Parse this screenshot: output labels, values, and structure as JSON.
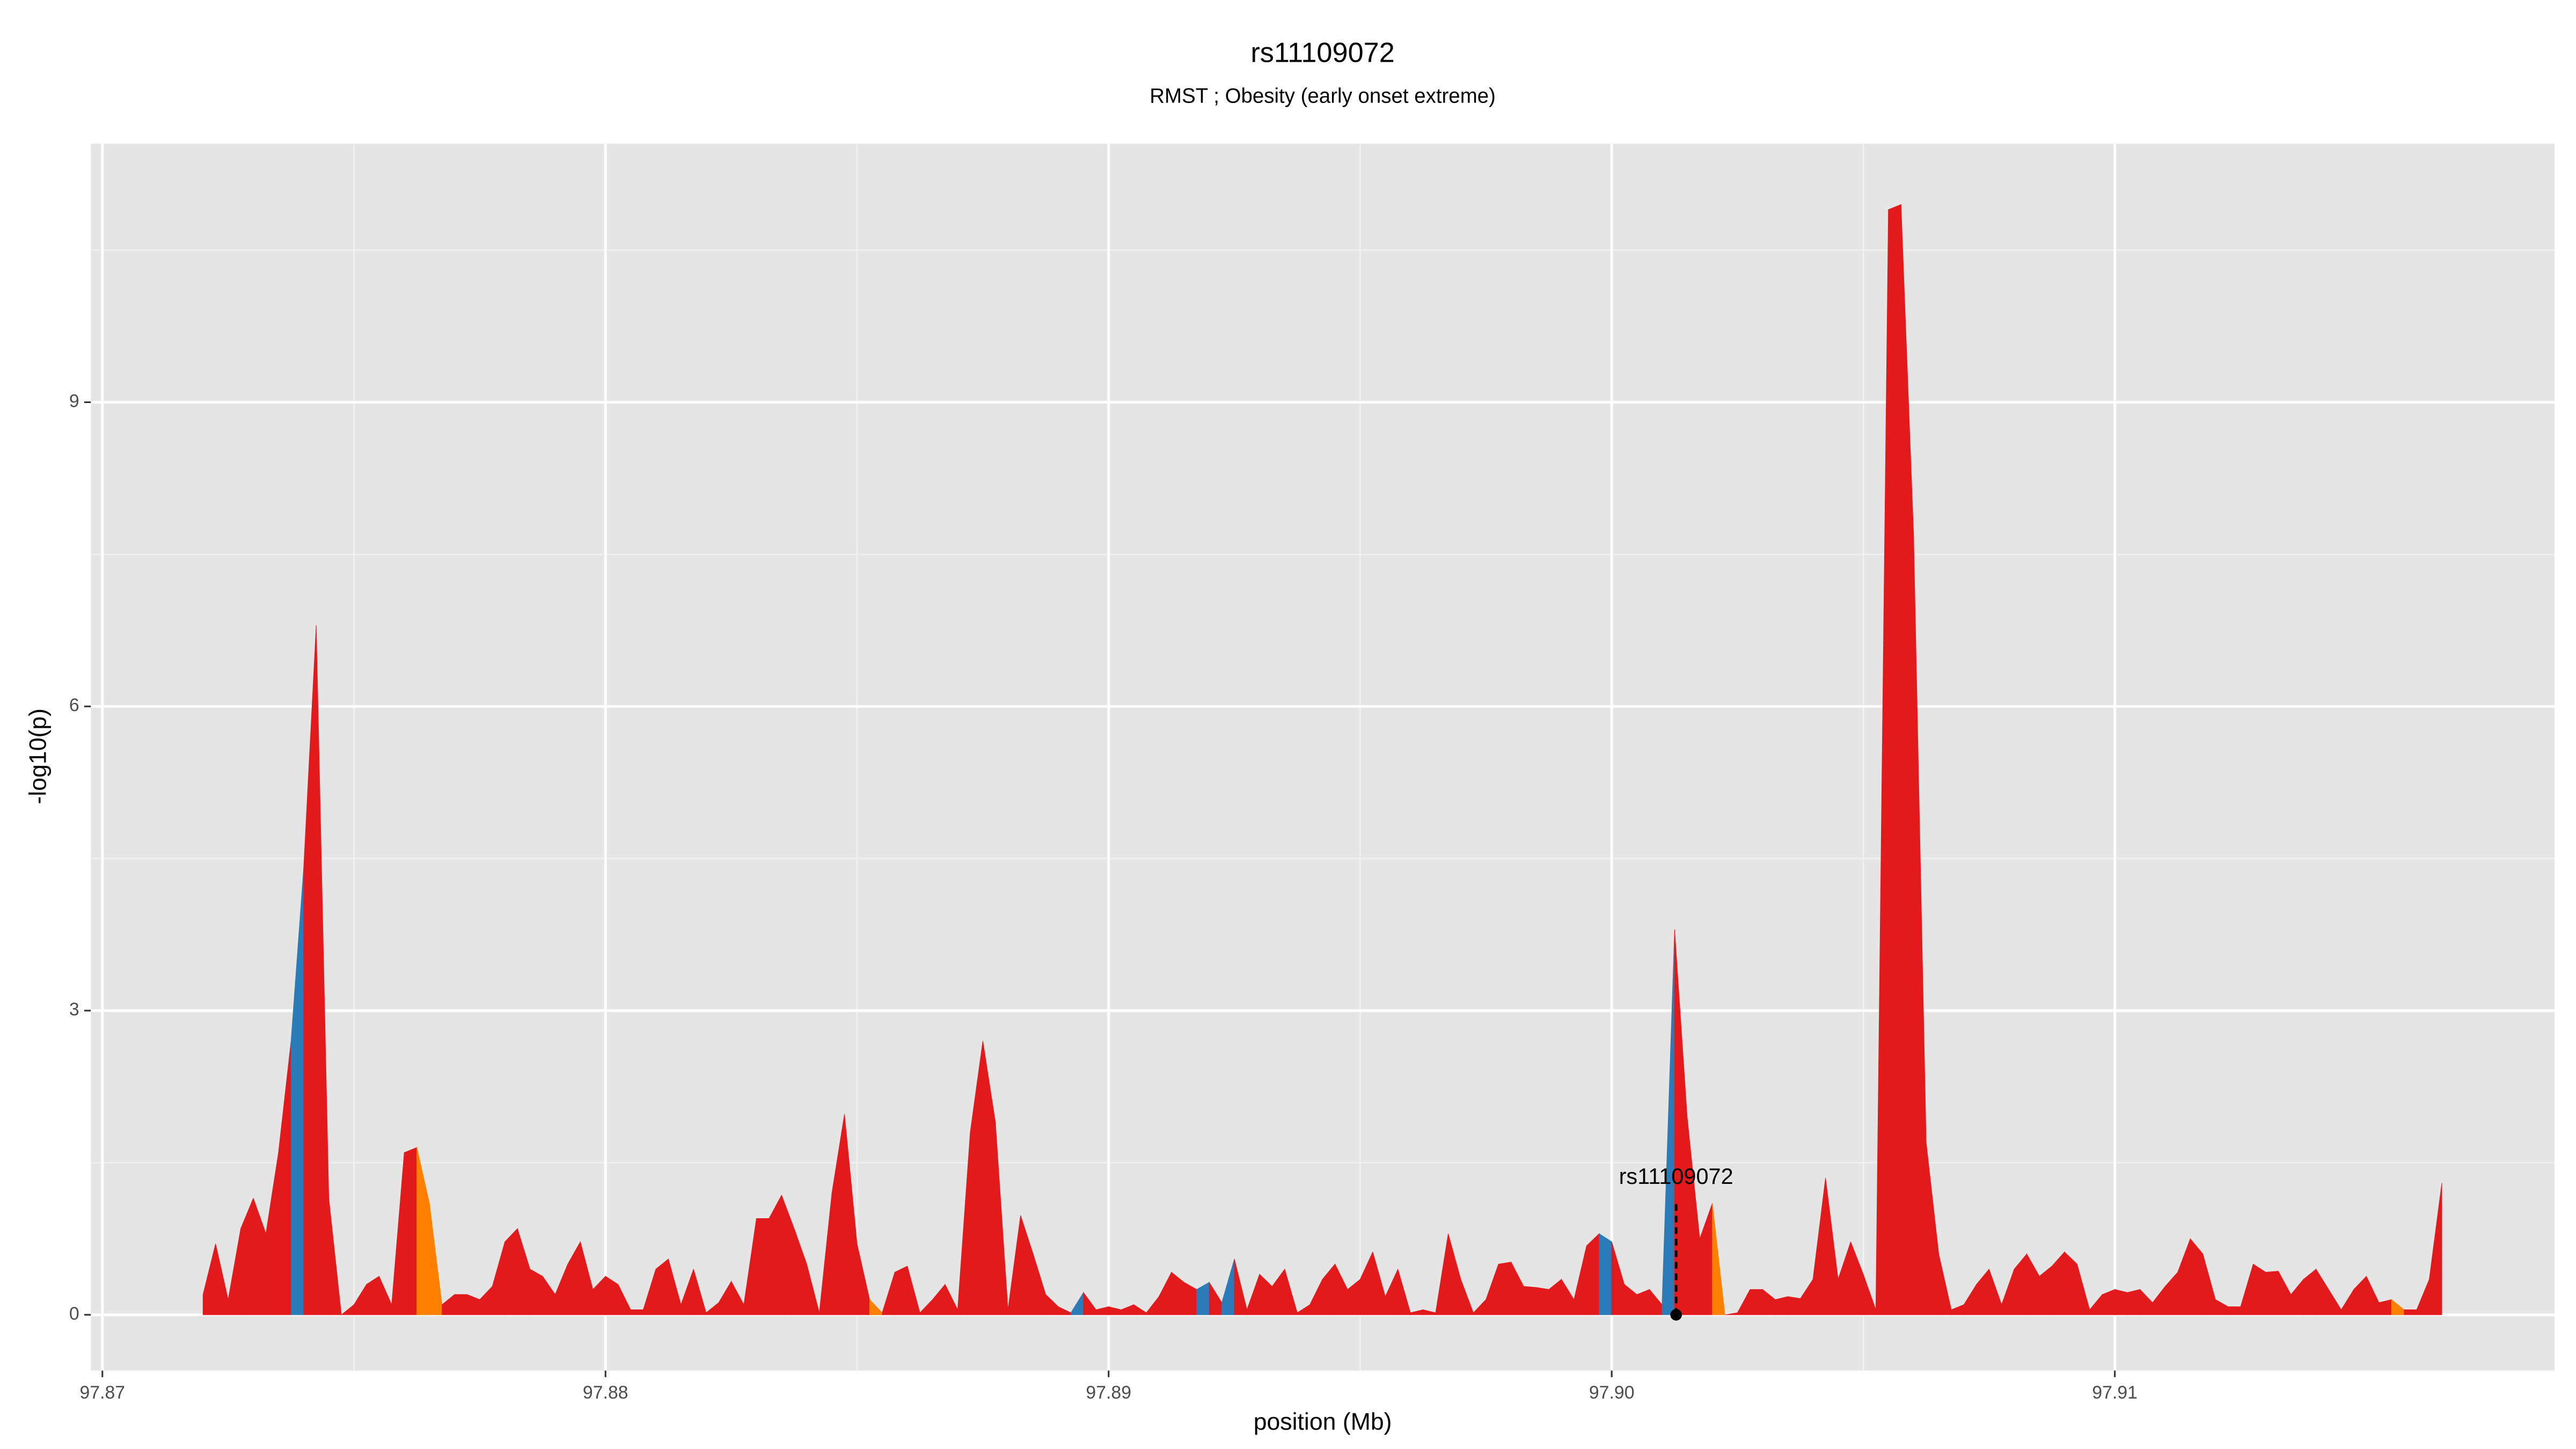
{
  "chart_data": {
    "type": "area",
    "title": "rs11109072",
    "subtitle": "RMST ; Obesity (early onset extreme)",
    "x_label": "position (Mb)",
    "y_label": "-log10(p)",
    "xlim": [
      97.86977,
      97.91874
    ],
    "xticks": [
      97.87,
      97.88,
      97.89,
      {
        "value": 97.9,
        "label": "97.90"
      },
      97.91
    ],
    "ylim": [
      -0.55,
      11.55
    ],
    "yticks": [
      0,
      3,
      6,
      9
    ],
    "grid": true,
    "x": [
      97.872,
      97.87225,
      97.8725,
      97.87275,
      97.873,
      97.87325,
      97.8735,
      97.87375,
      97.874,
      97.87425,
      97.8745,
      97.87475,
      97.875,
      97.87525,
      97.8755,
      97.87575,
      97.876,
      97.87625,
      97.8765,
      97.87675,
      97.877,
      97.87725,
      97.8775,
      97.87775,
      97.878,
      97.87825,
      97.8785,
      97.87875,
      97.879,
      97.87925,
      97.8795,
      97.87975,
      97.88,
      97.88025,
      97.8805,
      97.88075,
      97.881,
      97.88125,
      97.8815,
      97.88175,
      97.882,
      97.88225,
      97.8825,
      97.88275,
      97.883,
      97.88325,
      97.8835,
      97.88375,
      97.884,
      97.88425,
      97.8845,
      97.88475,
      97.885,
      97.88525,
      97.8855,
      97.88575,
      97.886,
      97.88625,
      97.8865,
      97.88675,
      97.887,
      97.88725,
      97.8875,
      97.88775,
      97.888,
      97.88825,
      97.8885,
      97.88875,
      97.889,
      97.88925,
      97.8895,
      97.88975,
      97.89,
      97.89025,
      97.8905,
      97.89075,
      97.891,
      97.89125,
      97.8915,
      97.89175,
      97.892,
      97.89225,
      97.8925,
      97.89275,
      97.893,
      97.89325,
      97.8935,
      97.89375,
      97.894,
      97.89425,
      97.8945,
      97.89475,
      97.895,
      97.89525,
      97.8955,
      97.89575,
      97.896,
      97.89625,
      97.8965,
      97.89675,
      97.897,
      97.89725,
      97.8975,
      97.89775,
      97.898,
      97.89825,
      97.8985,
      97.89875,
      97.899,
      97.89925,
      97.8995,
      97.89975,
      97.9,
      97.90025,
      97.9005,
      97.90075,
      97.901,
      97.90125,
      97.9015,
      97.90175,
      97.902,
      97.90225,
      97.9025,
      97.90275,
      97.903,
      97.90325,
      97.9035,
      97.90375,
      97.904,
      97.90425,
      97.9045,
      97.90475,
      97.905,
      97.90525,
      97.9055,
      97.90575,
      97.906,
      97.90625,
      97.9065,
      97.90675,
      97.907,
      97.90725,
      97.9075,
      97.90775,
      97.908,
      97.90825,
      97.9085,
      97.90875,
      97.909,
      97.90925,
      97.9095,
      97.90975,
      97.91,
      97.91025,
      97.9105,
      97.91075,
      97.911,
      97.91125,
      97.9115,
      97.91175,
      97.912,
      97.91225,
      97.9125,
      97.91275,
      97.913,
      97.91325,
      97.9135,
      97.91375,
      97.914,
      97.91425,
      97.9145,
      97.91475,
      97.915,
      97.91525,
      97.9155,
      97.91575,
      97.916,
      97.91625,
      97.9165
    ],
    "values": [
      0.2,
      0.7,
      0.15,
      0.85,
      1.15,
      0.8,
      1.6,
      2.7,
      4.4,
      6.8,
      1.15,
      0,
      0.1,
      0.3,
      0.38,
      0.1,
      1.6,
      1.65,
      1.1,
      0.1,
      0.2,
      0.2,
      0.15,
      0.28,
      0.72,
      0.85,
      0.45,
      0.38,
      0.2,
      0.5,
      0.72,
      0.25,
      0.38,
      0.3,
      0.05,
      0.05,
      0.45,
      0.55,
      0.1,
      0.45,
      0.02,
      0.12,
      0.33,
      0.1,
      0.95,
      0.95,
      1.18,
      0.85,
      0.5,
      0.02,
      1.2,
      1.98,
      0.7,
      0.15,
      0.02,
      0.42,
      0.48,
      0.02,
      0.15,
      0.3,
      0.05,
      1.8,
      2.7,
      1.9,
      0.05,
      0.98,
      0.6,
      0.2,
      0.08,
      0.02,
      0.22,
      0.05,
      0.08,
      0.05,
      0.1,
      0.02,
      0.18,
      0.42,
      0.32,
      0.25,
      0.32,
      0.12,
      0.55,
      0.05,
      0.4,
      0.28,
      0.45,
      0.02,
      0.1,
      0.35,
      0.5,
      0.25,
      0.35,
      0.62,
      0.18,
      0.45,
      0.02,
      0.05,
      0.02,
      0.8,
      0.35,
      0.02,
      0.15,
      0.5,
      0.52,
      0.28,
      0.27,
      0.25,
      0.35,
      0.15,
      0.68,
      0.8,
      0.72,
      0.3,
      0.2,
      0.25,
      0.1,
      3.8,
      1.95,
      0.75,
      1.1,
      0,
      0.02,
      0.25,
      0.25,
      0.15,
      0.18,
      0.16,
      0.35,
      1.35,
      0.35,
      0.72,
      0.4,
      0.05,
      10.9,
      10.95,
      7.7,
      1.7,
      0.6,
      0.05,
      0.1,
      0.3,
      0.45,
      0.1,
      0.45,
      0.6,
      0.38,
      0.48,
      0.62,
      0.5,
      0.05,
      0.2,
      0.25,
      0.22,
      0.25,
      0.12,
      0.28,
      0.42,
      0.75,
      0.6,
      0.15,
      0.08,
      0.08,
      0.5,
      0.42,
      0.43,
      0.2,
      0.35,
      0.45,
      0.25,
      0.05,
      0.25,
      0.38,
      0.12,
      0.15,
      0.05,
      0.05,
      0.35,
      1.3
    ],
    "colors": [
      "#e31a1c",
      "#e31a1c",
      "#e31a1c",
      "#e31a1c",
      "#e31a1c",
      "#e31a1c",
      "#e31a1c",
      "#2b7bb9",
      "#e31a1c",
      "#e31a1c",
      "#e31a1c",
      "#e31a1c",
      "#e31a1c",
      "#e31a1c",
      "#e31a1c",
      "#e31a1c",
      "#e31a1c",
      "#ff7f00",
      "#ff7f00",
      "#e31a1c",
      "#e31a1c",
      "#e31a1c",
      "#e31a1c",
      "#e31a1c",
      "#e31a1c",
      "#e31a1c",
      "#e31a1c",
      "#e31a1c",
      "#e31a1c",
      "#e31a1c",
      "#e31a1c",
      "#e31a1c",
      "#e31a1c",
      "#e31a1c",
      "#e31a1c",
      "#e31a1c",
      "#e31a1c",
      "#e31a1c",
      "#e31a1c",
      "#e31a1c",
      "#e31a1c",
      "#e31a1c",
      "#e31a1c",
      "#e31a1c",
      "#e31a1c",
      "#e31a1c",
      "#e31a1c",
      "#e31a1c",
      "#e31a1c",
      "#e31a1c",
      "#e31a1c",
      "#e31a1c",
      "#e31a1c",
      "#ff7f00",
      "#e31a1c",
      "#e31a1c",
      "#e31a1c",
      "#e31a1c",
      "#e31a1c",
      "#e31a1c",
      "#e31a1c",
      "#e31a1c",
      "#e31a1c",
      "#e31a1c",
      "#e31a1c",
      "#e31a1c",
      "#e31a1c",
      "#e31a1c",
      "#e31a1c",
      "#2b7bb9",
      "#e31a1c",
      "#e31a1c",
      "#e31a1c",
      "#e31a1c",
      "#e31a1c",
      "#e31a1c",
      "#e31a1c",
      "#e31a1c",
      "#e31a1c",
      "#2b7bb9",
      "#e31a1c",
      "#2b7bb9",
      "#e31a1c",
      "#e31a1c",
      "#e31a1c",
      "#e31a1c",
      "#e31a1c",
      "#e31a1c",
      "#e31a1c",
      "#e31a1c",
      "#e31a1c",
      "#e31a1c",
      "#e31a1c",
      "#e31a1c",
      "#e31a1c",
      "#e31a1c",
      "#e31a1c",
      "#e31a1c",
      "#e31a1c",
      "#e31a1c",
      "#e31a1c",
      "#e31a1c",
      "#e31a1c",
      "#e31a1c",
      "#e31a1c",
      "#e31a1c",
      "#e31a1c",
      "#e31a1c",
      "#e31a1c",
      "#e31a1c",
      "#e31a1c",
      "#2b7bb9",
      "#e31a1c",
      "#e31a1c",
      "#e31a1c",
      "#e31a1c",
      "#2b7bb9",
      "#e31a1c",
      "#e31a1c",
      "#e31a1c",
      "#ff7f00",
      "#e31a1c",
      "#e31a1c",
      "#e31a1c",
      "#e31a1c",
      "#e31a1c",
      "#e31a1c",
      "#e31a1c",
      "#e31a1c",
      "#e31a1c",
      "#e31a1c",
      "#e31a1c",
      "#e31a1c",
      "#e31a1c",
      "#e31a1c",
      "#e31a1c",
      "#e31a1c",
      "#e31a1c",
      "#e31a1c",
      "#e31a1c",
      "#e31a1c",
      "#e31a1c",
      "#e31a1c",
      "#e31a1c",
      "#e31a1c",
      "#e31a1c",
      "#e31a1c",
      "#e31a1c",
      "#e31a1c",
      "#e31a1c",
      "#e31a1c",
      "#e31a1c",
      "#e31a1c",
      "#e31a1c",
      "#e31a1c",
      "#e31a1c",
      "#e31a1c",
      "#e31a1c",
      "#e31a1c",
      "#e31a1c",
      "#e31a1c",
      "#e31a1c",
      "#e31a1c",
      "#e31a1c",
      "#e31a1c",
      "#e31a1c",
      "#e31a1c",
      "#e31a1c",
      "#e31a1c",
      "#e31a1c",
      "#e31a1c",
      "#e31a1c",
      "#e31a1c",
      "#e31a1c",
      "#ff7f00",
      "#e31a1c",
      "#e31a1c",
      "#e31a1c",
      "#e31a1c"
    ],
    "annotation": {
      "text": "rs11109072",
      "x": 97.90128,
      "y": 0,
      "y_end": 1.1,
      "label_y": 1.35
    }
  }
}
